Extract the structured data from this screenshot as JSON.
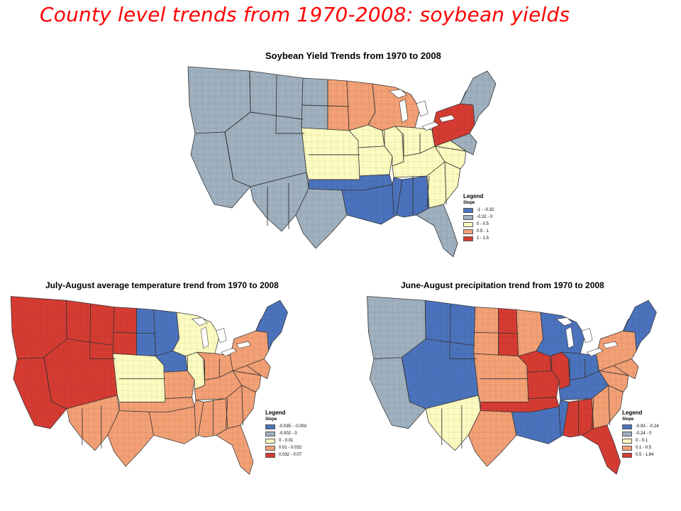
{
  "slide_title": "County level trends from 1970-2008: soybean yields",
  "palette": {
    "blue": "#4b73bd",
    "grey": "#9fb0bf",
    "yellow": "#fdfcc0",
    "orange": "#f3a075",
    "red": "#d63b32",
    "border": "#333333",
    "water": "#ffffff"
  },
  "maps": [
    {
      "id": "soy",
      "title": "Soybean Yield Trends from 1970 to 2008",
      "legend": {
        "title": "Legend",
        "subtitle": "Slope",
        "classes": [
          {
            "label": "-1 - -0.32",
            "color": "#4b73bd"
          },
          {
            "label": "-0.32 - 0",
            "color": "#9fb0bf"
          },
          {
            "label": "0 - 0.5",
            "color": "#fdfcc0"
          },
          {
            "label": "0.5 - 1",
            "color": "#f3a075"
          },
          {
            "label": "1 - 1.5",
            "color": "#d63b32"
          }
        ]
      },
      "region_classes": {
        "northwest": 1,
        "southwest": 1,
        "texas_west": 1,
        "texas_east": 1,
        "rockies": 1,
        "dakotas_west": 1,
        "dakotas_east": 3,
        "minnesota": 3,
        "iowa": 2,
        "nebraska_kansas": 2,
        "missouri": 2,
        "ozarks": 0,
        "illinois": 2,
        "wisconsin_michigan": 3,
        "indiana_ohio": 2,
        "kentucky_tennessee": 2,
        "lower_mississippi": 0,
        "gulf_south": 0,
        "southeast": 2,
        "florida": 1,
        "appalachia": 2,
        "mid_atlantic": 1,
        "pennsylvania_newyork": 4,
        "new_england": 1
      }
    },
    {
      "id": "temp",
      "title": "July-August average temperature trend from 1970 to 2008",
      "legend": {
        "title": "Legend",
        "subtitle": "Slope",
        "classes": [
          {
            "label": "-0.035 - -0.002",
            "color": "#4b73bd"
          },
          {
            "label": "-0.002 - 0",
            "color": "#9fb0bf"
          },
          {
            "label": "0 - 0.01",
            "color": "#fdfcc0"
          },
          {
            "label": "0.01 - 0.032",
            "color": "#f3a075"
          },
          {
            "label": "0.032 - 0.07",
            "color": "#d63b32"
          }
        ]
      },
      "region_classes": {
        "northwest": 4,
        "southwest": 4,
        "texas_west": 3,
        "texas_east": 3,
        "rockies": 4,
        "dakotas_west": 4,
        "dakotas_east": 0,
        "minnesota": 0,
        "iowa": 0,
        "nebraska_kansas": 2,
        "missouri": 3,
        "ozarks": 3,
        "illinois": 2,
        "wisconsin_michigan": 2,
        "indiana_ohio": 3,
        "kentucky_tennessee": 3,
        "lower_mississippi": 3,
        "gulf_south": 3,
        "southeast": 3,
        "florida": 3,
        "appalachia": 3,
        "mid_atlantic": 3,
        "pennsylvania_newyork": 3,
        "new_england": 0
      }
    },
    {
      "id": "precip",
      "title": "June-August precipitation trend from 1970 to 2008",
      "legend": {
        "title": "Legend",
        "subtitle": "Slope",
        "classes": [
          {
            "label": "-0.93 - -0.24",
            "color": "#4b73bd"
          },
          {
            "label": "-0.24 - 0",
            "color": "#9fb0bf"
          },
          {
            "label": "0 - 0.1",
            "color": "#fdfcc0"
          },
          {
            "label": "0.1 - 0.5",
            "color": "#f3a075"
          },
          {
            "label": "0.5 - 1.84",
            "color": "#d63b32"
          }
        ]
      },
      "region_classes": {
        "northwest": 1,
        "southwest": 1,
        "texas_west": 2,
        "texas_east": 3,
        "rockies": 0,
        "dakotas_west": 3,
        "dakotas_east": 4,
        "minnesota": 3,
        "iowa": 4,
        "nebraska_kansas": 3,
        "missouri": 4,
        "ozarks": 4,
        "illinois": 4,
        "wisconsin_michigan": 0,
        "indiana_ohio": 0,
        "kentucky_tennessee": 0,
        "lower_mississippi": 0,
        "gulf_south": 4,
        "southeast": 3,
        "florida": 4,
        "appalachia": 3,
        "mid_atlantic": 3,
        "pennsylvania_newyork": 3,
        "new_england": 0
      }
    }
  ]
}
